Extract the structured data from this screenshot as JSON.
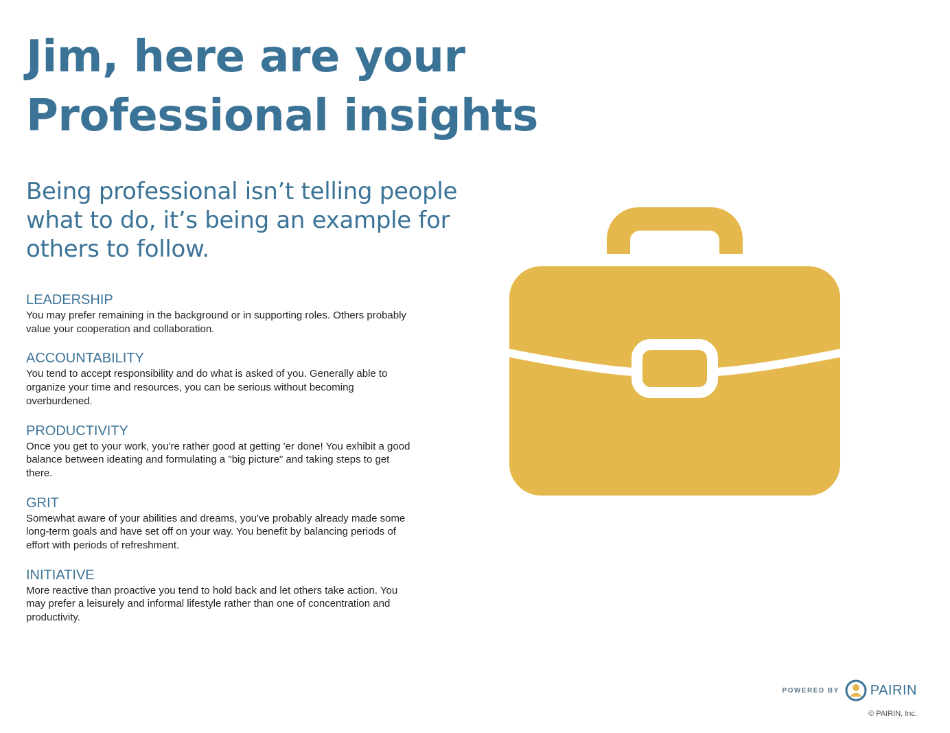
{
  "title": {
    "line1": "Jim, here are your",
    "line2": "Professional insights"
  },
  "quote": "Being professional isn’t telling people what to do, it’s being an example for others to follow.",
  "insights": [
    {
      "heading": "LEADERSHIP",
      "body": "You may prefer remaining in the background or in supporting roles. Others probably value your cooperation and collaboration."
    },
    {
      "heading": "ACCOUNTABILITY",
      "body": "You tend to accept responsibility and do what is asked of you. Generally able to organize your time and resources, you can be serious without becoming overburdened."
    },
    {
      "heading": "PRODUCTIVITY",
      "body": "Once you get to your work, you're rather good at getting 'er done! You exhibit a good balance between ideating and formulating a \"big picture\" and taking steps to get there."
    },
    {
      "heading": "GRIT",
      "body": "Somewhat aware of your abilities and dreams, you've probably already made some long-term goals and have set off on your way. You benefit by balancing periods of effort with periods of refreshment."
    },
    {
      "heading": "INITIATIVE",
      "body": "More reactive than proactive you tend to hold back and let others take action. You may prefer a leisurely and informal lifestyle rather than one of concentration and productivity."
    }
  ],
  "illustration": {
    "icon": "briefcase-icon",
    "color": "#e5b84e"
  },
  "footer": {
    "powered_by": "POWERED BY",
    "brand": "PAIRIN",
    "logo_icon": "pairin-person-logo-icon",
    "copyright": "© PAIRIN, Inc."
  },
  "colors": {
    "heading": "#3b7397",
    "body_text": "#1f1f1f",
    "accent": "#e5b84e"
  }
}
